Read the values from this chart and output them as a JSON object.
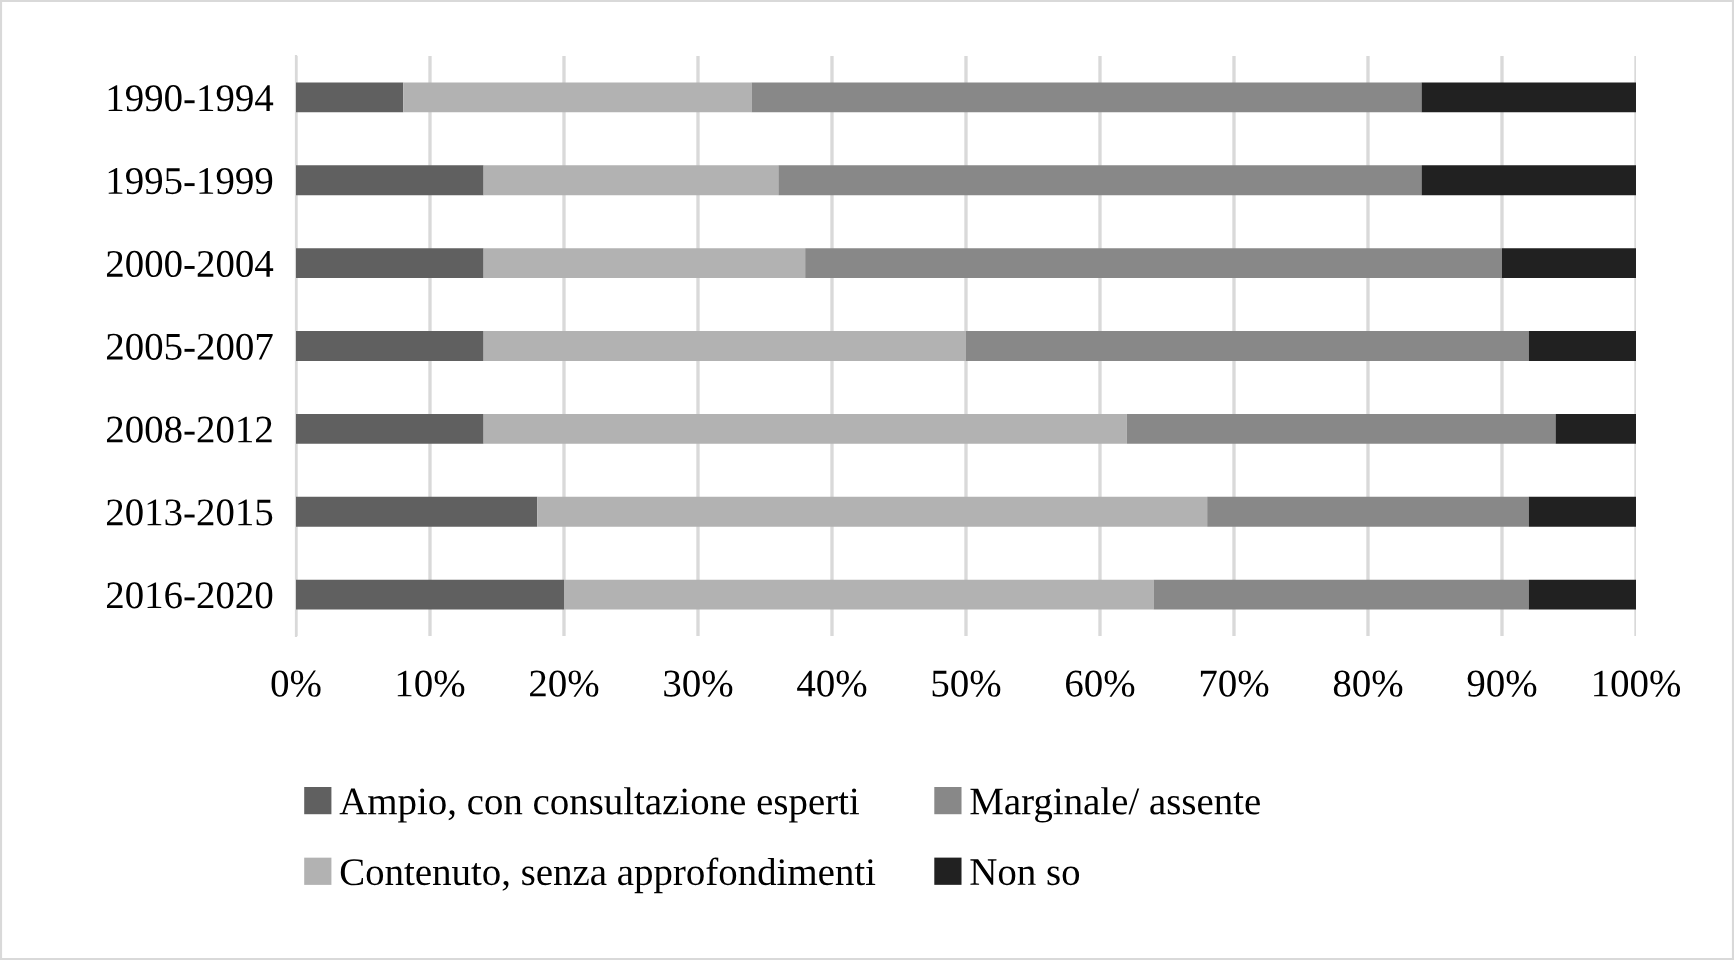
{
  "chart_data": {
    "type": "bar",
    "orientation": "horizontal",
    "stacked": true,
    "categories": [
      "1990-1994",
      "1995-1999",
      "2000-2004",
      "2005-2007",
      "2008-2012",
      "2013-2015",
      "2016-2020"
    ],
    "series": [
      {
        "name": "Ampio, con consultazione esperti",
        "color": "#606060",
        "values": [
          8,
          14,
          14,
          14,
          14,
          18,
          20
        ]
      },
      {
        "name": "Contenuto, senza approfondimenti",
        "color": "#b2b2b2",
        "values": [
          26,
          22,
          24,
          36,
          48,
          50,
          44
        ]
      },
      {
        "name": "Marginale/ assente",
        "color": "#888888",
        "values": [
          50,
          48,
          52,
          42,
          32,
          24,
          28
        ]
      },
      {
        "name": "Non so",
        "color": "#212121",
        "values": [
          16,
          16,
          10,
          8,
          6,
          8,
          8
        ]
      }
    ],
    "xlim": [
      0,
      100
    ],
    "xticks": [
      {
        "value": 0,
        "label": "0%"
      },
      {
        "value": 10,
        "label": "10%"
      },
      {
        "value": 20,
        "label": "20%"
      },
      {
        "value": 30,
        "label": "30%"
      },
      {
        "value": 40,
        "label": "40%"
      },
      {
        "value": 50,
        "label": "50%"
      },
      {
        "value": 60,
        "label": "60%"
      },
      {
        "value": 70,
        "label": "70%"
      },
      {
        "value": 80,
        "label": "80%"
      },
      {
        "value": 90,
        "label": "90%"
      },
      {
        "value": 100,
        "label": "100%"
      }
    ],
    "grid": "x",
    "legend": "bottom"
  }
}
